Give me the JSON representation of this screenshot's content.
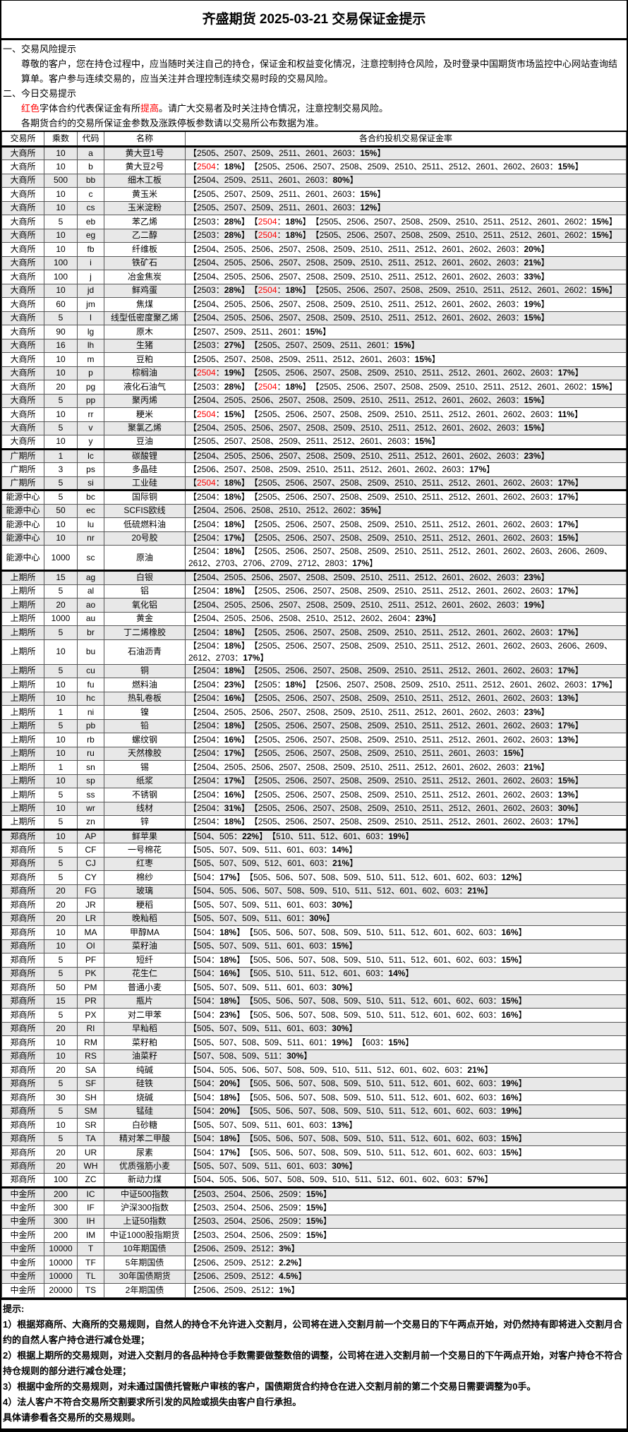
{
  "title": "齐盛期货 2025-03-21 交易保证金提示",
  "notes": {
    "h1": "一、交易风险提示",
    "p1": "尊敬的客户，您在持仓过程中，应当随时关注自己的持仓，保证金和权益变化情况，注意控制持仓风险，及时登录中国期货市场监控中心网站查询结算单。客户参与连续交易的，应当关注并合理控制连续交易时段的交易风险。",
    "h2": "二、今日交易提示",
    "p2a": "红色",
    "p2b": "字体合约代表保证金有所",
    "p2c": "提高",
    "p2d": "。请广大交易者及时关注持仓情况，注意控制交易风险。",
    "p3": "各期货合约的交易所保证金参数及涨跌停板参数请以交易所公布数据为准。"
  },
  "colors": {
    "highlight": "#ff0000",
    "stripe": "#e8e8e8"
  },
  "table": {
    "headers": [
      "交易所",
      "乘数",
      "代码",
      "名称",
      "各合约投机交易保证金率"
    ],
    "rows": [
      [
        "大商所",
        "10",
        "a",
        "黄大豆1号",
        [
          [
            "2505、2507、2509、2511、2601、2603",
            "15%"
          ]
        ]
      ],
      [
        "大商所",
        "10",
        "b",
        "黄大豆2号",
        [
          [
            "2504",
            "18%",
            1
          ],
          [
            "2505、2506、2507、2508、2509、2510、2511、2512、2601、2602、2603",
            "15%"
          ]
        ]
      ],
      [
        "大商所",
        "500",
        "bb",
        "细木工板",
        [
          [
            "2504、2509、2511、2601、2603",
            "80%"
          ]
        ]
      ],
      [
        "大商所",
        "10",
        "c",
        "黄玉米",
        [
          [
            "2505、2507、2509、2511、2601、2603",
            "15%"
          ]
        ]
      ],
      [
        "大商所",
        "10",
        "cs",
        "玉米淀粉",
        [
          [
            "2505、2507、2509、2511、2601、2603",
            "12%"
          ]
        ]
      ],
      [
        "大商所",
        "5",
        "eb",
        "苯乙烯",
        [
          [
            "2503",
            "28%"
          ],
          [
            "2504",
            "18%",
            1
          ],
          [
            "2505、2506、2507、2508、2509、2510、2511、2512、2601、2602",
            "15%"
          ]
        ]
      ],
      [
        "大商所",
        "10",
        "eg",
        "乙二醇",
        [
          [
            "2503",
            "28%"
          ],
          [
            "2504",
            "18%",
            1
          ],
          [
            "2505、2506、2507、2508、2509、2510、2511、2512、2601、2602",
            "15%"
          ]
        ]
      ],
      [
        "大商所",
        "10",
        "fb",
        "纤维板",
        [
          [
            "2504、2505、2506、2507、2508、2509、2510、2511、2512、2601、2602、2603",
            "20%"
          ]
        ]
      ],
      [
        "大商所",
        "100",
        "i",
        "铁矿石",
        [
          [
            "2504、2505、2506、2507、2508、2509、2510、2511、2512、2601、2602、2603",
            "21%"
          ]
        ]
      ],
      [
        "大商所",
        "100",
        "j",
        "冶金焦炭",
        [
          [
            "2504、2505、2506、2507、2508、2509、2510、2511、2512、2601、2602、2603",
            "33%"
          ]
        ]
      ],
      [
        "大商所",
        "10",
        "jd",
        "鲜鸡蛋",
        [
          [
            "2503",
            "28%"
          ],
          [
            "2504",
            "18%",
            1
          ],
          [
            "2505、2506、2507、2508、2509、2510、2511、2512、2601、2602",
            "15%"
          ]
        ]
      ],
      [
        "大商所",
        "60",
        "jm",
        "焦煤",
        [
          [
            "2504、2505、2506、2507、2508、2509、2510、2511、2512、2601、2602、2603",
            "19%"
          ]
        ]
      ],
      [
        "大商所",
        "5",
        "l",
        "线型低密度聚乙烯",
        [
          [
            "2504、2505、2506、2507、2508、2509、2510、2511、2512、2601、2602、2603",
            "15%"
          ]
        ]
      ],
      [
        "大商所",
        "90",
        "lg",
        "原木",
        [
          [
            "2507、2509、2511、2601",
            "15%"
          ]
        ]
      ],
      [
        "大商所",
        "16",
        "lh",
        "生猪",
        [
          [
            "2503",
            "27%"
          ],
          [
            "2505、2507、2509、2511、2601",
            "15%"
          ]
        ]
      ],
      [
        "大商所",
        "10",
        "m",
        "豆粕",
        [
          [
            "2505、2507、2508、2509、2511、2512、2601、2603",
            "15%"
          ]
        ]
      ],
      [
        "大商所",
        "10",
        "p",
        "棕榈油",
        [
          [
            "2504",
            "19%",
            1
          ],
          [
            "2505、2506、2507、2508、2509、2510、2511、2512、2601、2602、2603",
            "17%"
          ]
        ]
      ],
      [
        "大商所",
        "20",
        "pg",
        "液化石油气",
        [
          [
            "2503",
            "28%"
          ],
          [
            "2504",
            "18%",
            1
          ],
          [
            "2505、2506、2507、2508、2509、2510、2511、2512、2601、2602",
            "15%"
          ]
        ]
      ],
      [
        "大商所",
        "5",
        "pp",
        "聚丙烯",
        [
          [
            "2504、2505、2506、2507、2508、2509、2510、2511、2512、2601、2602、2603",
            "15%"
          ]
        ]
      ],
      [
        "大商所",
        "10",
        "rr",
        "粳米",
        [
          [
            "2504",
            "15%",
            1
          ],
          [
            "2505、2506、2507、2508、2509、2510、2511、2512、2601、2602、2603",
            "11%"
          ]
        ]
      ],
      [
        "大商所",
        "5",
        "v",
        "聚氯乙烯",
        [
          [
            "2504、2505、2506、2507、2508、2509、2510、2511、2512、2601、2602、2603",
            "15%"
          ]
        ]
      ],
      [
        "大商所",
        "10",
        "y",
        "豆油",
        [
          [
            "2505、2507、2508、2509、2511、2512、2601、2603",
            "15%"
          ]
        ]
      ],
      [
        "广期所",
        "1",
        "lc",
        "碳酸锂",
        [
          [
            "2504、2505、2506、2507、2508、2509、2510、2511、2512、2601、2602、2603",
            "23%"
          ]
        ]
      ],
      [
        "广期所",
        "3",
        "ps",
        "多晶硅",
        [
          [
            "2506、2507、2508、2509、2510、2511、2512、2601、2602、2603",
            "17%"
          ]
        ]
      ],
      [
        "广期所",
        "5",
        "si",
        "工业硅",
        [
          [
            "2504",
            "18%",
            1
          ],
          [
            "2505、2506、2507、2508、2509、2510、2511、2512、2601、2602、2603",
            "17%"
          ]
        ]
      ],
      [
        "能源中心",
        "5",
        "bc",
        "国际铜",
        [
          [
            "2504",
            "18%"
          ],
          [
            "2505、2506、2507、2508、2509、2510、2511、2512、2601、2602、2603",
            "17%"
          ]
        ]
      ],
      [
        "能源中心",
        "50",
        "ec",
        "SCFIS欧线",
        [
          [
            "2504、2506、2508、2510、2512、2602",
            "35%"
          ]
        ]
      ],
      [
        "能源中心",
        "10",
        "lu",
        "低硫燃料油",
        [
          [
            "2504",
            "18%"
          ],
          [
            "2505、2506、2507、2508、2509、2510、2511、2512、2601、2602、2603",
            "17%"
          ]
        ]
      ],
      [
        "能源中心",
        "10",
        "nr",
        "20号胶",
        [
          [
            "2504",
            "17%"
          ],
          [
            "2505、2506、2507、2508、2509、2510、2511、2512、2601、2602、2603",
            "15%"
          ]
        ]
      ],
      [
        "能源中心",
        "1000",
        "sc",
        "原油",
        [
          [
            "2504",
            "18%"
          ],
          [
            "2505、2506、2507、2508、2509、2510、2511、2512、2601、2602、2603、2606、2609、2612、2703、2706、2709、2712、2803",
            "17%"
          ]
        ]
      ],
      [
        "上期所",
        "15",
        "ag",
        "白银",
        [
          [
            "2504、2505、2506、2507、2508、2509、2510、2511、2512、2601、2602、2603",
            "23%"
          ]
        ]
      ],
      [
        "上期所",
        "5",
        "al",
        "铝",
        [
          [
            "2504",
            "18%"
          ],
          [
            "2505、2506、2507、2508、2509、2510、2511、2512、2601、2602、2603",
            "17%"
          ]
        ]
      ],
      [
        "上期所",
        "20",
        "ao",
        "氧化铝",
        [
          [
            "2504、2505、2506、2507、2508、2509、2510、2511、2512、2601、2602、2603",
            "19%"
          ]
        ]
      ],
      [
        "上期所",
        "1000",
        "au",
        "黄金",
        [
          [
            "2504、2505、2506、2508、2510、2512、2602、2604",
            "23%"
          ]
        ]
      ],
      [
        "上期所",
        "5",
        "br",
        "丁二烯橡胶",
        [
          [
            "2504",
            "18%"
          ],
          [
            "2505、2506、2507、2508、2509、2510、2511、2512、2601、2602、2603",
            "17%"
          ]
        ]
      ],
      [
        "上期所",
        "10",
        "bu",
        "石油沥青",
        [
          [
            "2504",
            "18%"
          ],
          [
            "2505、2506、2507、2508、2509、2510、2511、2512、2601、2602、2603、2606、2609、2612、2703",
            "17%"
          ]
        ]
      ],
      [
        "上期所",
        "5",
        "cu",
        "铜",
        [
          [
            "2504",
            "18%"
          ],
          [
            "2505、2506、2507、2508、2509、2510、2511、2512、2601、2602、2603",
            "17%"
          ]
        ]
      ],
      [
        "上期所",
        "10",
        "fu",
        "燃料油",
        [
          [
            "2504",
            "23%"
          ],
          [
            "2505",
            "18%"
          ],
          [
            "2506、2507、2508、2509、2510、2511、2512、2601、2602、2603",
            "17%"
          ]
        ]
      ],
      [
        "上期所",
        "10",
        "hc",
        "热轧卷板",
        [
          [
            "2504",
            "16%"
          ],
          [
            "2505、2506、2507、2508、2509、2510、2511、2512、2601、2602、2603",
            "13%"
          ]
        ]
      ],
      [
        "上期所",
        "1",
        "ni",
        "镍",
        [
          [
            "2504、2505、2506、2507、2508、2509、2510、2511、2512、2601、2602、2603",
            "23%"
          ]
        ]
      ],
      [
        "上期所",
        "5",
        "pb",
        "铅",
        [
          [
            "2504",
            "18%"
          ],
          [
            "2505、2506、2507、2508、2509、2510、2511、2512、2601、2602、2603",
            "17%"
          ]
        ]
      ],
      [
        "上期所",
        "10",
        "rb",
        "螺纹钢",
        [
          [
            "2504",
            "16%"
          ],
          [
            "2505、2506、2507、2508、2509、2510、2511、2512、2601、2602、2603",
            "13%"
          ]
        ]
      ],
      [
        "上期所",
        "10",
        "ru",
        "天然橡胶",
        [
          [
            "2504",
            "17%"
          ],
          [
            "2505、2506、2507、2508、2509、2510、2511、2601、2603",
            "15%"
          ]
        ]
      ],
      [
        "上期所",
        "1",
        "sn",
        "锡",
        [
          [
            "2504、2505、2506、2507、2508、2509、2510、2511、2512、2601、2602、2603",
            "21%"
          ]
        ]
      ],
      [
        "上期所",
        "10",
        "sp",
        "纸浆",
        [
          [
            "2504",
            "17%"
          ],
          [
            "2505、2506、2507、2508、2509、2510、2511、2512、2601、2602、2603",
            "15%"
          ]
        ]
      ],
      [
        "上期所",
        "5",
        "ss",
        "不锈钢",
        [
          [
            "2504",
            "16%"
          ],
          [
            "2505、2506、2507、2508、2509、2510、2511、2512、2601、2602、2603",
            "13%"
          ]
        ]
      ],
      [
        "上期所",
        "10",
        "wr",
        "线材",
        [
          [
            "2504",
            "31%"
          ],
          [
            "2505、2506、2507、2508、2509、2510、2511、2512、2601、2602、2603",
            "30%"
          ]
        ]
      ],
      [
        "上期所",
        "5",
        "zn",
        "锌",
        [
          [
            "2504",
            "18%"
          ],
          [
            "2505、2506、2507、2508、2509、2510、2511、2512、2601、2602、2603",
            "17%"
          ]
        ]
      ],
      [
        "郑商所",
        "10",
        "AP",
        "鲜苹果",
        [
          [
            "504、505",
            "22%"
          ],
          [
            "510、511、512、601、603",
            "19%"
          ]
        ]
      ],
      [
        "郑商所",
        "5",
        "CF",
        "一号棉花",
        [
          [
            "505、507、509、511、601、603",
            "14%"
          ]
        ]
      ],
      [
        "郑商所",
        "5",
        "CJ",
        "红枣",
        [
          [
            "505、507、509、512、601、603",
            "21%"
          ]
        ]
      ],
      [
        "郑商所",
        "5",
        "CY",
        "棉纱",
        [
          [
            "504",
            "17%"
          ],
          [
            "505、506、507、508、509、510、511、512、601、602、603",
            "12%"
          ]
        ]
      ],
      [
        "郑商所",
        "20",
        "FG",
        "玻璃",
        [
          [
            "504、505、506、507、508、509、510、511、512、601、602、603",
            "21%"
          ]
        ]
      ],
      [
        "郑商所",
        "20",
        "JR",
        "粳稻",
        [
          [
            "505、507、509、511、601、603",
            "30%"
          ]
        ]
      ],
      [
        "郑商所",
        "20",
        "LR",
        "晚籼稻",
        [
          [
            "505、507、509、511、601",
            "30%"
          ]
        ]
      ],
      [
        "郑商所",
        "10",
        "MA",
        "甲醇MA",
        [
          [
            "504",
            "18%"
          ],
          [
            "505、506、507、508、509、510、511、512、601、602、603",
            "16%"
          ]
        ]
      ],
      [
        "郑商所",
        "10",
        "OI",
        "菜籽油",
        [
          [
            "505、507、509、511、601、603",
            "15%"
          ]
        ]
      ],
      [
        "郑商所",
        "5",
        "PF",
        "短纤",
        [
          [
            "504",
            "18%"
          ],
          [
            "505、506、507、508、509、510、511、512、601、602、603",
            "15%"
          ]
        ]
      ],
      [
        "郑商所",
        "5",
        "PK",
        "花生仁",
        [
          [
            "504",
            "16%"
          ],
          [
            "505、510、511、512、601、603",
            "14%"
          ]
        ]
      ],
      [
        "郑商所",
        "50",
        "PM",
        "普通小麦",
        [
          [
            "505、507、509、511、601、603",
            "30%"
          ]
        ]
      ],
      [
        "郑商所",
        "15",
        "PR",
        "瓶片",
        [
          [
            "504",
            "18%"
          ],
          [
            "505、506、507、508、509、510、511、512、601、602、603",
            "15%"
          ]
        ]
      ],
      [
        "郑商所",
        "5",
        "PX",
        "对二甲苯",
        [
          [
            "504",
            "23%"
          ],
          [
            "505、506、507、508、509、510、511、512、601、602、603",
            "16%"
          ]
        ]
      ],
      [
        "郑商所",
        "20",
        "RI",
        "早籼稻",
        [
          [
            "505、507、509、511、601、603",
            "30%"
          ]
        ]
      ],
      [
        "郑商所",
        "10",
        "RM",
        "菜籽粕",
        [
          [
            "505、507、508、509、511、601",
            "19%"
          ],
          [
            "603",
            "15%"
          ]
        ]
      ],
      [
        "郑商所",
        "10",
        "RS",
        "油菜籽",
        [
          [
            "507、508、509、511",
            "30%"
          ]
        ]
      ],
      [
        "郑商所",
        "20",
        "SA",
        "纯碱",
        [
          [
            "504、505、506、507、508、509、510、511、512、601、602、603",
            "21%"
          ]
        ]
      ],
      [
        "郑商所",
        "5",
        "SF",
        "硅铁",
        [
          [
            "504",
            "20%"
          ],
          [
            "505、506、507、508、509、510、511、512、601、602、603",
            "19%"
          ]
        ]
      ],
      [
        "郑商所",
        "30",
        "SH",
        "烧碱",
        [
          [
            "504",
            "18%"
          ],
          [
            "505、506、507、508、509、510、511、512、601、602、603",
            "16%"
          ]
        ]
      ],
      [
        "郑商所",
        "5",
        "SM",
        "锰硅",
        [
          [
            "504",
            "20%"
          ],
          [
            "505、506、507、508、509、510、511、512、601、602、603",
            "19%"
          ]
        ]
      ],
      [
        "郑商所",
        "10",
        "SR",
        "白砂糖",
        [
          [
            "505、507、509、511、601、603",
            "13%"
          ]
        ]
      ],
      [
        "郑商所",
        "5",
        "TA",
        "精对苯二甲酸",
        [
          [
            "504",
            "18%"
          ],
          [
            "505、506、507、508、509、510、511、512、601、602、603",
            "15%"
          ]
        ]
      ],
      [
        "郑商所",
        "20",
        "UR",
        "尿素",
        [
          [
            "504",
            "17%"
          ],
          [
            "505、506、507、508、509、510、511、512、601、602、603",
            "15%"
          ]
        ]
      ],
      [
        "郑商所",
        "20",
        "WH",
        "优质强筋小麦",
        [
          [
            "505、507、509、511、601、603",
            "30%"
          ]
        ]
      ],
      [
        "郑商所",
        "100",
        "ZC",
        "新动力煤",
        [
          [
            "504、505、506、507、508、509、510、511、512、601、602、603",
            "57%"
          ]
        ]
      ],
      [
        "中金所",
        "200",
        "IC",
        "中证500指数",
        [
          [
            "2503、2504、2506、2509",
            "15%"
          ]
        ]
      ],
      [
        "中金所",
        "300",
        "IF",
        "沪深300指数",
        [
          [
            "2503、2504、2506、2509",
            "15%"
          ]
        ]
      ],
      [
        "中金所",
        "300",
        "IH",
        "上证50指数",
        [
          [
            "2503、2504、2506、2509",
            "15%"
          ]
        ]
      ],
      [
        "中金所",
        "200",
        "IM",
        "中证1000股指期货",
        [
          [
            "2503、2504、2506、2509",
            "15%"
          ]
        ]
      ],
      [
        "中金所",
        "10000",
        "T",
        "10年期国债",
        [
          [
            "2506、2509、2512",
            "3%"
          ]
        ]
      ],
      [
        "中金所",
        "10000",
        "TF",
        "5年期国债",
        [
          [
            "2506、2509、2512",
            "2.2%"
          ]
        ]
      ],
      [
        "中金所",
        "10000",
        "TL",
        "30年国债期货",
        [
          [
            "2506、2509、2512",
            "4.5%"
          ]
        ]
      ],
      [
        "中金所",
        "20000",
        "TS",
        "2年期国债",
        [
          [
            "2506、2509、2512",
            "1%"
          ]
        ]
      ]
    ]
  },
  "footer": {
    "title": "提示:",
    "items": [
      "1）根据郑商所、大商所的交易规则，自然人的持仓不允许进入交割月，公司将在进入交割月前一个交易日的下午两点开始，对仍然持有即将进入交割月合约的自然人客户持仓进行减仓处理；",
      "2）根据上期所的交易规则，对进入交割月的各品种持仓手数需要做整数倍的调整，公司将在进入交割月前一个交易日的下午两点开始，对客户持仓不符合持仓规则的部分进行减仓处理；",
      "3）根据中金所的交易规则，对未通过国债托管账户审核的客户，国债期货合约持仓在进入交割月前的第二个交易日需要调整为0手。",
      "4）法人客户不符合交易所交割要求所引发的风险或损失由客户自行承担。"
    ],
    "closing": "具体请参看各交易所的交易规则。"
  }
}
